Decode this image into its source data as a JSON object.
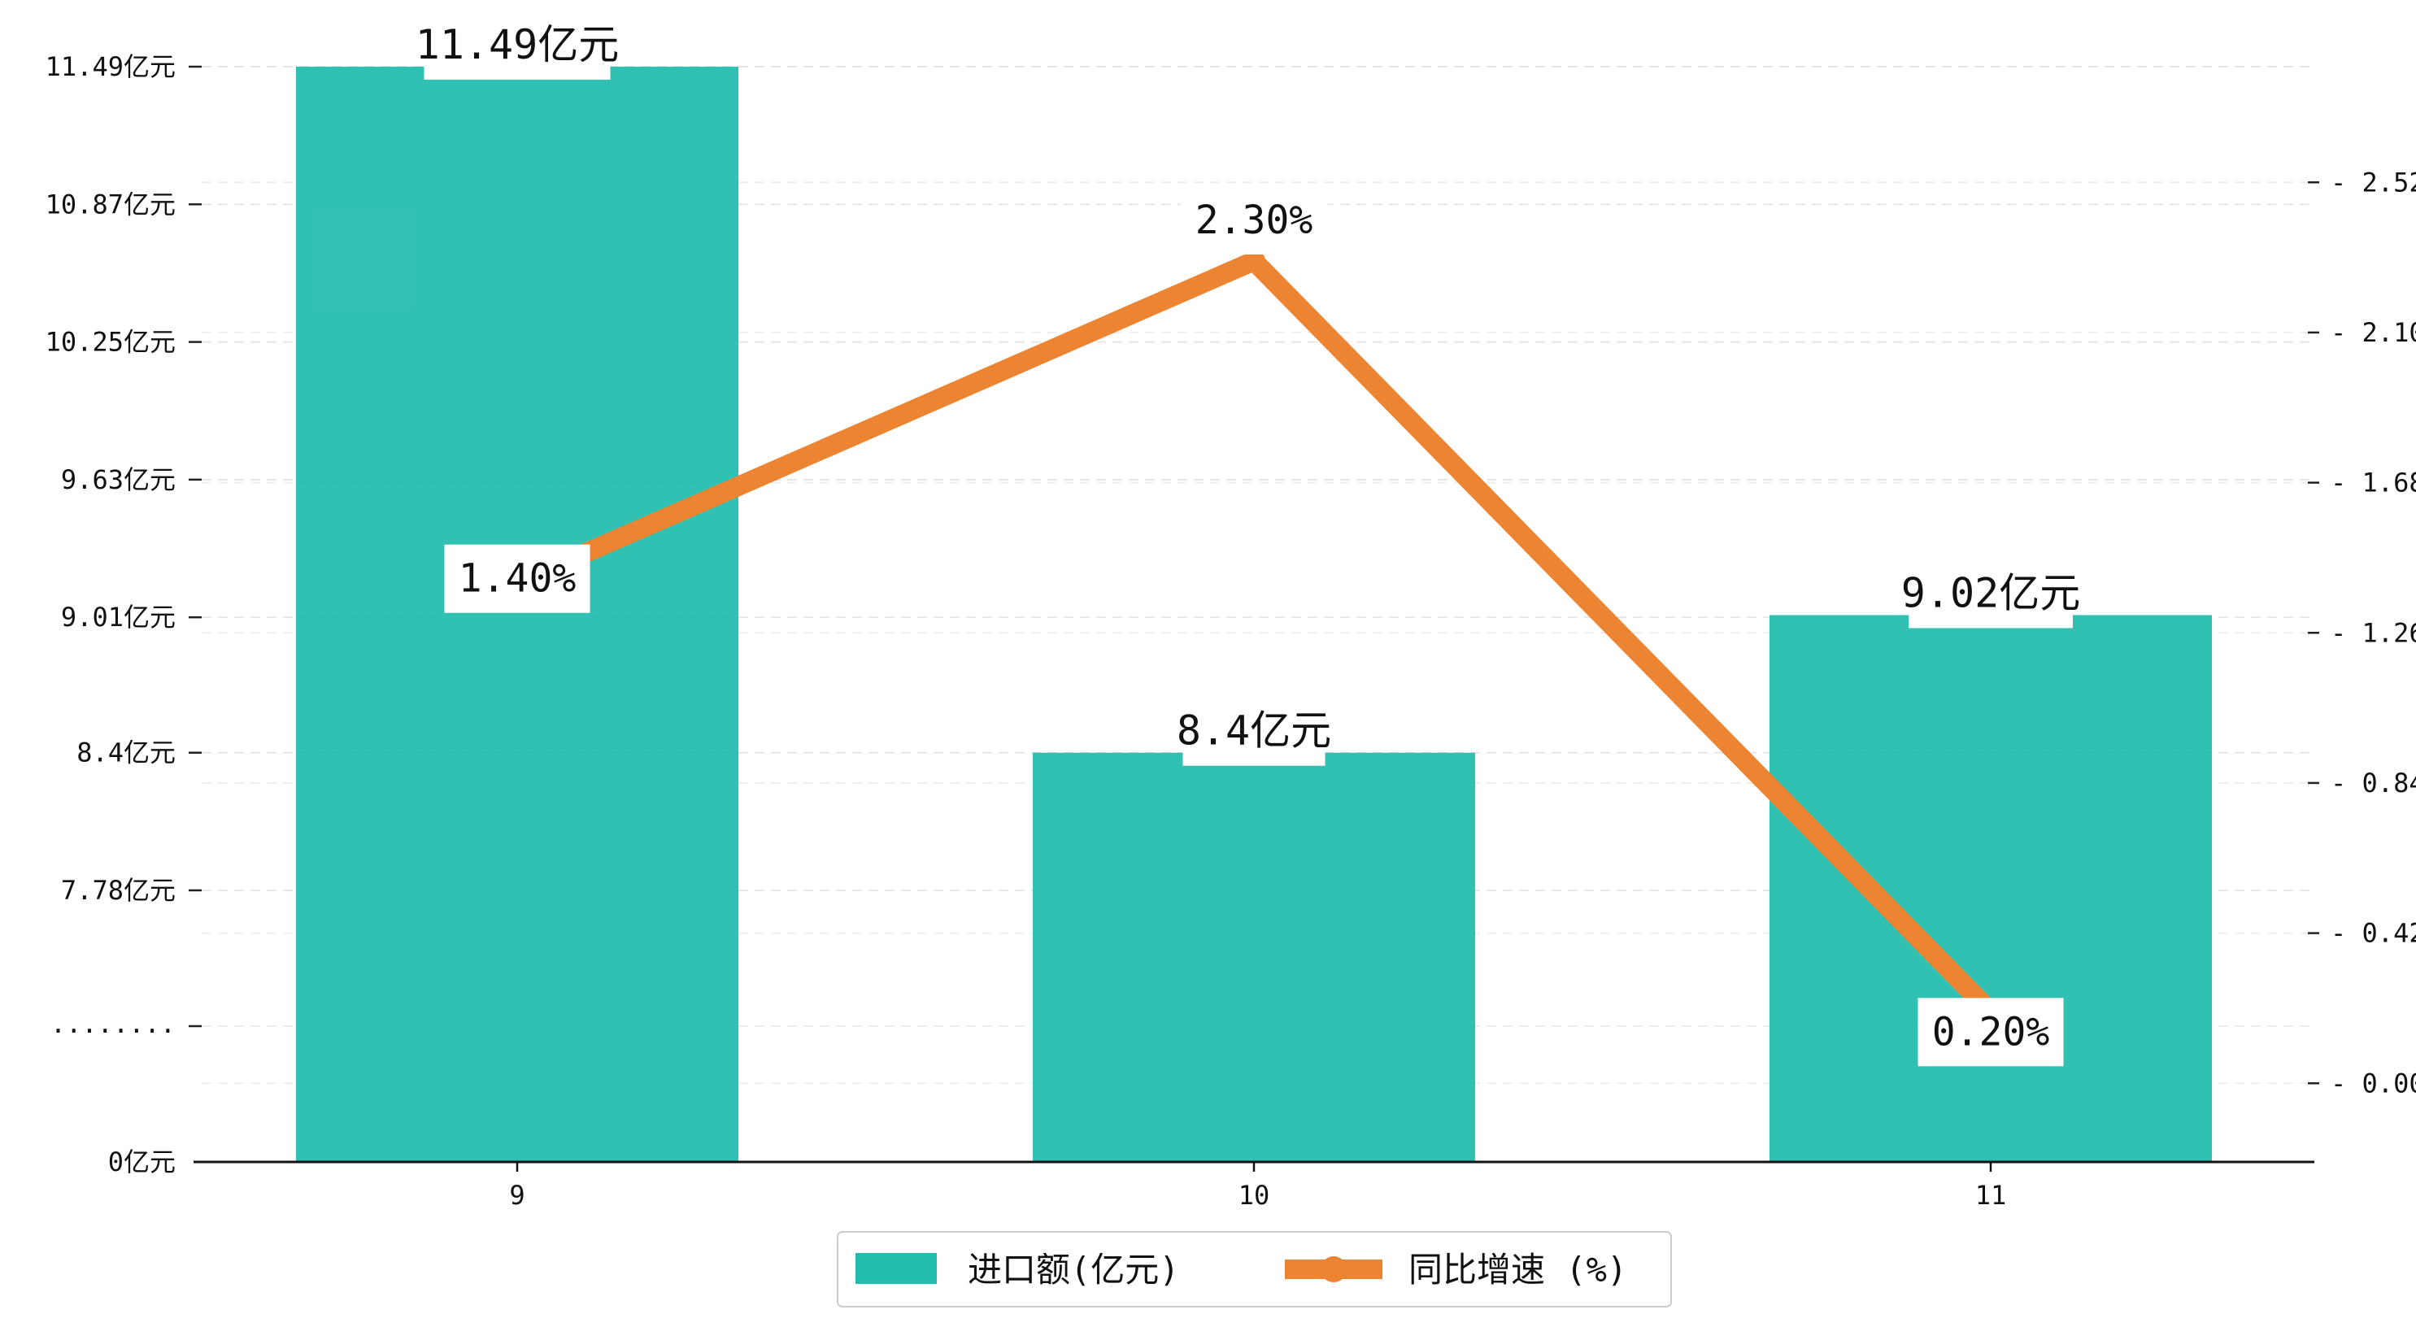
{
  "chart_data": {
    "type": "bar",
    "categories": [
      "9",
      "10",
      "11"
    ],
    "series": [
      {
        "name": "进口额(亿元)",
        "type": "bar",
        "axis": "left",
        "values": [
          11.49,
          8.4,
          9.02
        ],
        "labels": [
          "11.49亿元",
          "8.4亿元",
          "9.02亿元"
        ],
        "color": "#20BCAC"
      },
      {
        "name": "同比增速 (%)",
        "type": "line",
        "axis": "right",
        "values": [
          1.4,
          2.3,
          0.2
        ],
        "labels": [
          "1.40%",
          "2.30%",
          "0.20%"
        ],
        "color": "#ED8431"
      }
    ],
    "left_axis": {
      "broken": true,
      "break_label": "........",
      "ticks": [
        {
          "value": 0,
          "label": "0亿元"
        },
        {
          "value": 7.78,
          "label": "7.78亿元"
        },
        {
          "value": 8.4,
          "label": "8.4亿元"
        },
        {
          "value": 9.01,
          "label": "9.01亿元"
        },
        {
          "value": 9.63,
          "label": "9.63亿元"
        },
        {
          "value": 10.25,
          "label": "10.25亿元"
        },
        {
          "value": 10.87,
          "label": "10.87亿元"
        },
        {
          "value": 11.49,
          "label": "11.49亿元"
        }
      ]
    },
    "right_axis": {
      "ylim": [
        -0.22,
        2.98
      ],
      "ticks": [
        {
          "value": 0.0,
          "label": "0.00"
        },
        {
          "value": 0.42,
          "label": "0.42"
        },
        {
          "value": 0.84,
          "label": "0.84"
        },
        {
          "value": 1.26,
          "label": "1.26"
        },
        {
          "value": 1.68,
          "label": "1.68"
        },
        {
          "value": 2.1,
          "label": "2.10"
        },
        {
          "value": 2.52,
          "label": "2.52"
        }
      ]
    },
    "grid": "horizontal dashed",
    "legend_position": "bottom-center"
  }
}
